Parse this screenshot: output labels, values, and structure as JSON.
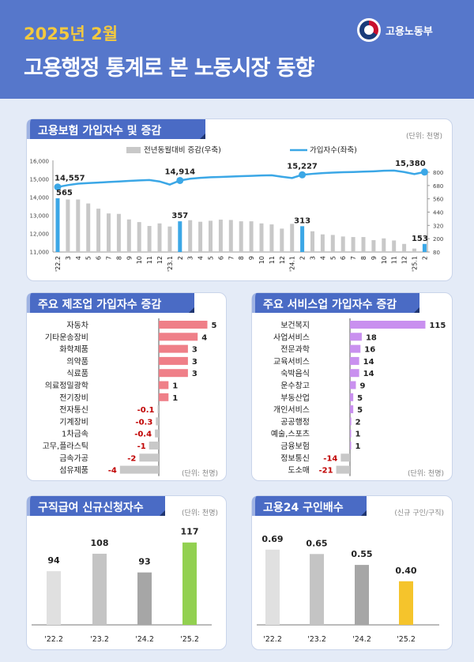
{
  "header": {
    "month": "2025년 2월",
    "title": "고용행정 통계로 본 노동시장 동향",
    "ministry": "고용노동부"
  },
  "panels": {
    "insurance": {
      "title": "고용보험 가입자수 및 증감",
      "unit": "(단위: 천명)"
    },
    "manufacturing": {
      "title": "주요 제조업 가입자수 증감",
      "unit": "(단위: 천명)"
    },
    "services": {
      "title": "주요 서비스업 가입자수 증감",
      "unit": "(단위: 천명)"
    },
    "claims": {
      "title": "구직급여 신규신청자수",
      "unit": "(단위: 천명)"
    },
    "jobs_ratio": {
      "title": "고용24 구인배수",
      "unit": "(신규 구인/구직)"
    }
  },
  "colors": {
    "header": "#5677cb",
    "tab": "#4a6bc5",
    "month": "#f3c93f",
    "line": "#3ba7e6",
    "bar_gray": "#c8c8c8",
    "manufacturing_bar": "#ef7f88",
    "services_bar": "#c990ef",
    "negative_label": "#c00000",
    "claims_highlight": "#92d050",
    "ratio_highlight": "#f5c42c"
  },
  "chart_data": [
    {
      "type": "bar+line",
      "legend": [
        {
          "name": "전년동월대비 증감(우축)",
          "type": "bar"
        },
        {
          "name": "가입자수(좌축)",
          "type": "line"
        }
      ],
      "legend_position": "top",
      "categories": [
        "'22.2",
        "3",
        "4",
        "5",
        "6",
        "7",
        "8",
        "9",
        "10",
        "11",
        "12",
        "'23.1",
        "2",
        "3",
        "4",
        "5",
        "6",
        "7",
        "8",
        "9",
        "10",
        "11",
        "12",
        "'24.1",
        "2",
        "3",
        "4",
        "5",
        "6",
        "7",
        "8",
        "9",
        "10",
        "11",
        "12",
        "'25.1",
        "2"
      ],
      "bars_right_axis": [
        565,
        554,
        554,
        518,
        471,
        428,
        424,
        374,
        350,
        315,
        338,
        310,
        357,
        367,
        353,
        362,
        372,
        369,
        357,
        357,
        338,
        329,
        291,
        334,
        313,
        267,
        239,
        234,
        220,
        215,
        215,
        187,
        203,
        184,
        153,
        111,
        153
      ],
      "line_left_axis": [
        14557,
        14660,
        14740,
        14770,
        14800,
        14830,
        14860,
        14890,
        14920,
        14940,
        14860,
        14690,
        14914,
        15010,
        15060,
        15090,
        15110,
        15130,
        15150,
        15170,
        15190,
        15200,
        15120,
        15050,
        15227,
        15280,
        15320,
        15350,
        15370,
        15380,
        15400,
        15420,
        15450,
        15460,
        15380,
        15270,
        15380
      ],
      "highlight_indices": [
        0,
        12,
        24,
        36
      ],
      "line_labels": [
        "14,557",
        "14,914",
        "15,227",
        "15,380"
      ],
      "bar_labels": [
        "565",
        "357",
        "313",
        "153"
      ],
      "left_axis": {
        "ylim": [
          11000,
          16000
        ],
        "ticks": [
          "11,000",
          "12,000",
          "13,000",
          "14,000",
          "15,000",
          "16,000"
        ]
      },
      "right_axis": {
        "ylim": [
          80,
          800
        ],
        "ticks": [
          "80",
          "200",
          "320",
          "440",
          "560",
          "680",
          "800"
        ]
      }
    },
    {
      "type": "hbar",
      "categories": [
        "자동차",
        "기타운송장비",
        "화학제품",
        "의약품",
        "식료품",
        "의료정밀광학",
        "전기장비",
        "전자통신",
        "기계장비",
        "1차금속",
        "고무,플라스틱",
        "금속가공",
        "섬유제품"
      ],
      "values": [
        5,
        4,
        3,
        3,
        3,
        1,
        1,
        -0.1,
        -0.3,
        -0.4,
        -1,
        -2,
        -4
      ],
      "labels": [
        "5",
        "4",
        "3",
        "3",
        "3",
        "1",
        "1",
        "-0.1",
        "-0.3",
        "-0.4",
        "-1",
        "-2",
        "-4"
      ]
    },
    {
      "type": "hbar",
      "categories": [
        "보건복지",
        "사업서비스",
        "전문과학",
        "교육서비스",
        "숙박음식",
        "운수창고",
        "부동산업",
        "개인서비스",
        "공공행정",
        "예술,스포츠",
        "금융보험",
        "정보통신",
        "도소매"
      ],
      "values": [
        115,
        18,
        16,
        14,
        14,
        9,
        5,
        5,
        2,
        1,
        1,
        -14,
        -21
      ],
      "labels": [
        "115",
        "18",
        "16",
        "14",
        "14",
        "9",
        "5",
        "5",
        "2",
        "1",
        "1",
        "-14",
        "-21"
      ]
    },
    {
      "type": "bar",
      "categories": [
        "'22.2",
        "'23.2",
        "'24.2",
        "'25.2"
      ],
      "values": [
        94,
        108,
        93,
        117
      ],
      "labels": [
        "94",
        "108",
        "93",
        "117"
      ],
      "colors": [
        "#e0e0e0",
        "#c4c4c4",
        "#a6a6a6",
        "#92d050"
      ]
    },
    {
      "type": "bar",
      "categories": [
        "'22.2",
        "'23.2",
        "'24.2",
        "'25.2"
      ],
      "values": [
        0.69,
        0.65,
        0.55,
        0.4
      ],
      "labels": [
        "0.69",
        "0.65",
        "0.55",
        "0.40"
      ],
      "colors": [
        "#e0e0e0",
        "#c4c4c4",
        "#a6a6a6",
        "#f5c42c"
      ]
    }
  ]
}
